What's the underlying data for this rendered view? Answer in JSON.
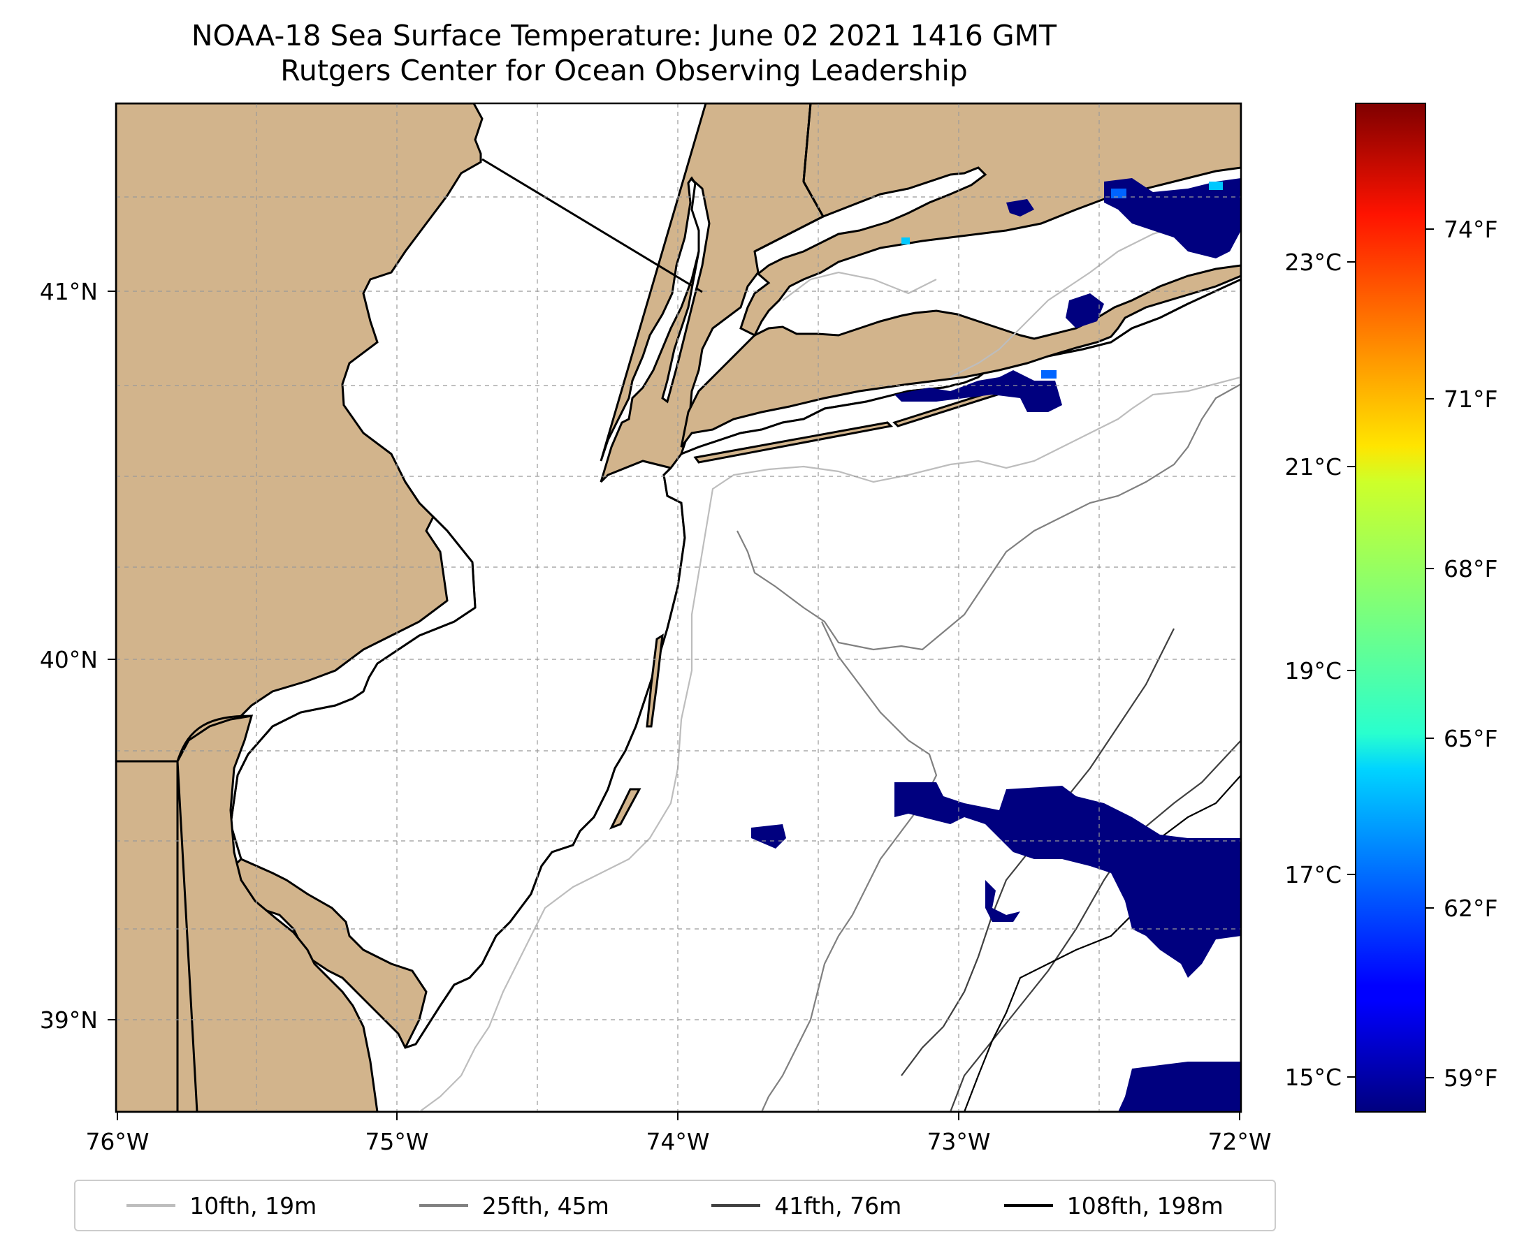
{
  "title": {
    "line1": "NOAA-18 Sea Surface Temperature: June 02 2021 1416 GMT",
    "line2": "Rutgers Center for Ocean Observing Leadership"
  },
  "map": {
    "lon_labels": [
      "76°W",
      "75°W",
      "74°W",
      "73°W",
      "72°W"
    ],
    "lat_labels": [
      "41°N",
      "40°N",
      "39°N"
    ],
    "land_color": "#d2b48c",
    "ocean_color": "#ffffff",
    "cold_sst_color": "#00007f"
  },
  "colorbar": {
    "celsius_labels": [
      "23°C",
      "21°C",
      "19°C",
      "17°C",
      "15°C"
    ],
    "fahrenheit_labels": [
      "74°F",
      "71°F",
      "68°F",
      "65°F",
      "62°F",
      "59°F"
    ],
    "colormap": "jet"
  },
  "legend": {
    "items": [
      {
        "label": "10fth, 19m",
        "color": "#bdbdbd"
      },
      {
        "label": "25fth, 45m",
        "color": "#808080"
      },
      {
        "label": "41fth, 76m",
        "color": "#404040"
      },
      {
        "label": "108fth, 198m",
        "color": "#000000"
      }
    ]
  }
}
